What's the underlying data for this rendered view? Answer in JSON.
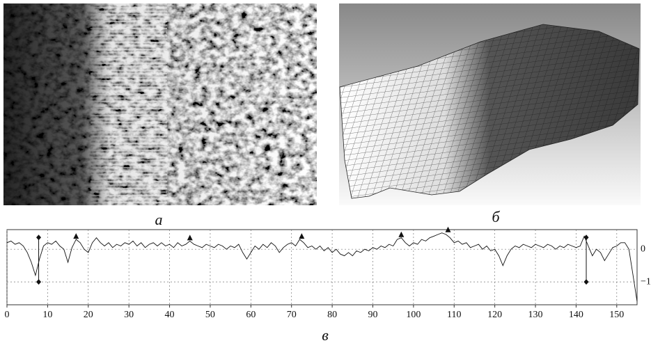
{
  "panels": [
    {
      "caption": "а"
    },
    {
      "caption": "б"
    }
  ],
  "chart_data": {
    "type": "line",
    "caption": "в",
    "color": "#111111",
    "grid": true,
    "x": [
      0,
      1,
      2,
      3,
      4,
      5,
      6,
      7,
      8,
      9,
      10,
      11,
      12,
      13,
      14,
      15,
      16,
      17,
      18,
      19,
      20,
      21,
      22,
      23,
      24,
      25,
      26,
      27,
      28,
      29,
      30,
      31,
      32,
      33,
      34,
      35,
      36,
      37,
      38,
      39,
      40,
      41,
      42,
      43,
      44,
      45,
      46,
      47,
      48,
      49,
      50,
      51,
      52,
      53,
      54,
      55,
      56,
      57,
      58,
      59,
      60,
      61,
      62,
      63,
      64,
      65,
      66,
      67,
      68,
      69,
      70,
      71,
      72,
      73,
      74,
      75,
      76,
      77,
      78,
      79,
      80,
      81,
      82,
      83,
      84,
      85,
      86,
      87,
      88,
      89,
      90,
      91,
      92,
      93,
      94,
      95,
      96,
      97,
      98,
      99,
      100,
      101,
      102,
      103,
      104,
      105,
      106,
      107,
      108,
      109,
      110,
      111,
      112,
      113,
      114,
      115,
      116,
      117,
      118,
      119,
      120,
      121,
      122,
      123,
      124,
      125,
      126,
      127,
      128,
      129,
      130,
      131,
      132,
      133,
      134,
      135,
      136,
      137,
      138,
      139,
      140,
      141,
      142,
      143,
      144,
      145,
      146,
      147,
      148,
      149,
      150,
      151,
      152,
      153,
      154,
      155
    ],
    "values": [
      0.2,
      0.25,
      0.15,
      0.2,
      0.1,
      -0.1,
      -0.4,
      -0.8,
      -0.3,
      0.1,
      0.2,
      0.15,
      0.25,
      0.1,
      0.0,
      -0.4,
      0.05,
      0.3,
      0.2,
      0.0,
      -0.1,
      0.2,
      0.35,
      0.2,
      0.1,
      0.2,
      0.05,
      0.15,
      0.1,
      0.2,
      0.15,
      0.25,
      0.1,
      0.2,
      0.05,
      0.15,
      0.2,
      0.1,
      0.2,
      0.1,
      0.15,
      0.05,
      0.2,
      0.1,
      0.15,
      0.25,
      0.15,
      0.1,
      0.05,
      0.15,
      0.1,
      0.05,
      0.15,
      0.1,
      0.0,
      0.1,
      0.05,
      0.15,
      -0.1,
      -0.3,
      -0.1,
      0.1,
      0.0,
      0.15,
      0.05,
      0.2,
      0.1,
      -0.1,
      0.05,
      0.15,
      0.2,
      0.1,
      0.3,
      0.2,
      0.05,
      0.1,
      0.0,
      0.1,
      -0.05,
      0.05,
      -0.1,
      0.0,
      -0.15,
      -0.2,
      -0.1,
      -0.2,
      -0.05,
      -0.1,
      0.0,
      -0.05,
      0.05,
      0.0,
      0.1,
      0.05,
      0.15,
      0.1,
      0.3,
      0.35,
      0.2,
      0.1,
      0.2,
      0.15,
      0.3,
      0.25,
      0.35,
      0.4,
      0.45,
      0.5,
      0.45,
      0.35,
      0.2,
      0.25,
      0.15,
      0.2,
      0.05,
      0.1,
      0.15,
      0.0,
      0.1,
      -0.05,
      0.0,
      -0.2,
      -0.5,
      -0.2,
      0.0,
      0.1,
      0.05,
      0.15,
      0.1,
      0.05,
      0.15,
      0.1,
      0.05,
      0.15,
      0.1,
      0.0,
      0.1,
      0.05,
      0.15,
      0.1,
      0.05,
      0.1,
      0.4,
      0.1,
      -0.2,
      0.0,
      -0.1,
      -0.35,
      -0.15,
      0.05,
      0.1,
      0.2,
      0.2,
      0.0,
      -0.8,
      -1.6
    ],
    "peaks": {
      "x": [
        17,
        45,
        72.5,
        97,
        108.5
      ],
      "y": [
        0.3,
        0.25,
        0.3,
        0.35,
        0.5
      ]
    },
    "cursors": {
      "x": [
        7.8,
        142.5
      ],
      "top": [
        0.36,
        0.36
      ],
      "bottom": [
        -1.0,
        -1.0
      ]
    },
    "xlim": [
      0,
      155
    ],
    "xticks": [
      0,
      10,
      20,
      30,
      40,
      50,
      60,
      70,
      80,
      90,
      100,
      110,
      120,
      130,
      140,
      150
    ],
    "ylim": [
      -1.7,
      0.6
    ],
    "yticks": [
      0,
      {
        "value": -1,
        "label": "−1"
      }
    ]
  }
}
